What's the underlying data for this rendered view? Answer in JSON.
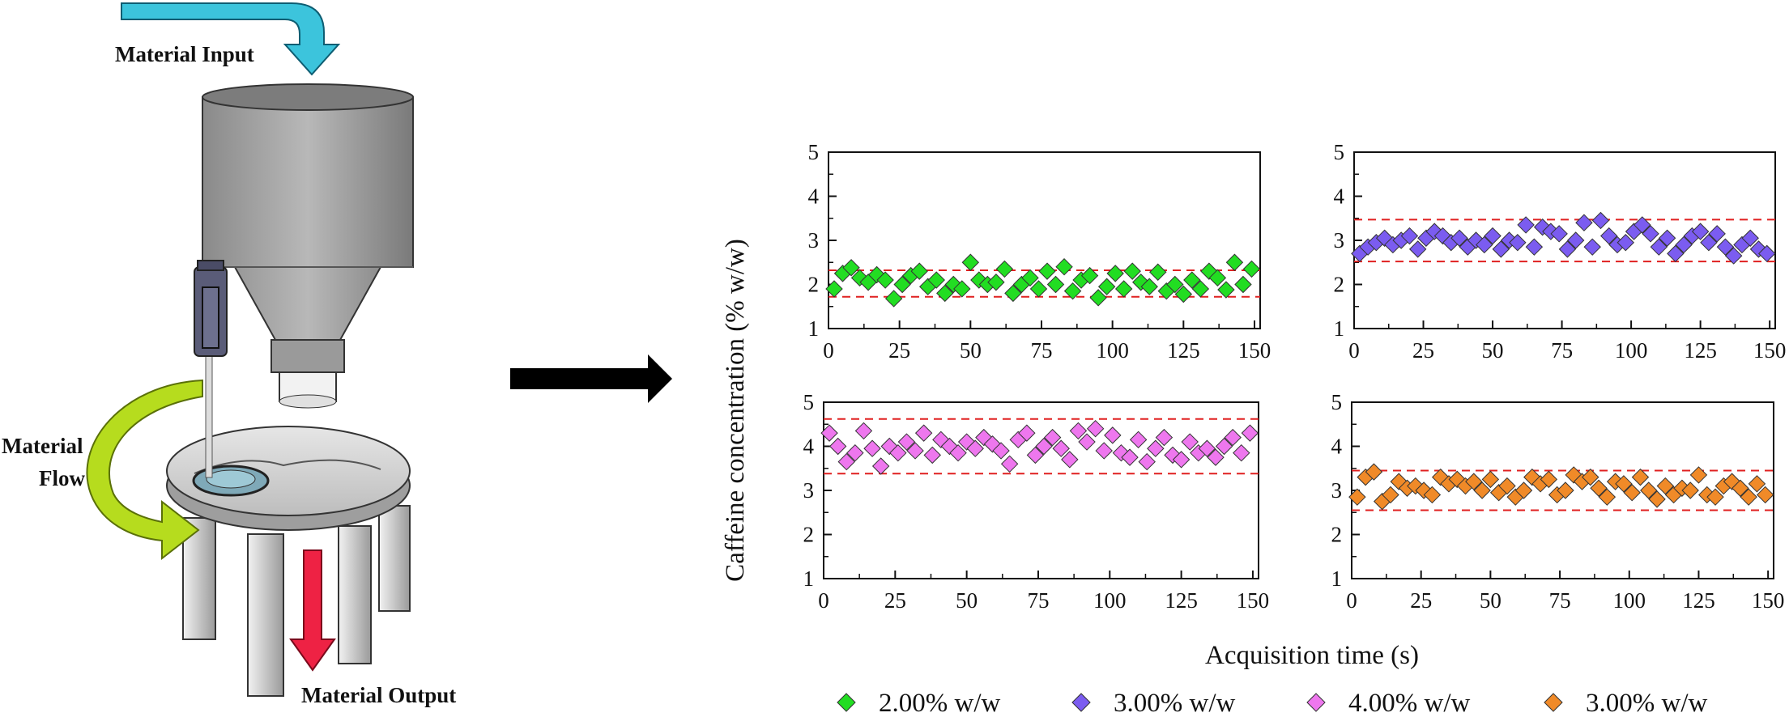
{
  "diagram": {
    "material_input_label": "Material Input",
    "material_flow_label_line1": "Material",
    "material_flow_label_line2": "Flow",
    "material_output_label": "Material Output"
  },
  "shared_axes": {
    "ylabel": "Caffeine concentration (% w/w)",
    "xlabel": "Acquisition time (s)"
  },
  "legend": [
    {
      "label": "2.00% w/w",
      "color": "#22dd22"
    },
    {
      "label": "3.00% w/w",
      "color": "#7b5cf0"
    },
    {
      "label": "4.00% w/w",
      "color": "#ee77ee"
    },
    {
      "label": "3.00% w/w",
      "color": "#f08a28"
    }
  ],
  "chart_data": [
    {
      "type": "scatter",
      "name": "2.00% w/w",
      "color": "#22dd22",
      "xlim": [
        0,
        152
      ],
      "ylim": [
        1,
        5
      ],
      "xticks": [
        0,
        25,
        50,
        75,
        100,
        125,
        150
      ],
      "yticks": [
        1,
        2,
        3,
        4,
        5
      ],
      "limits": [
        1.72,
        2.32
      ],
      "x": [
        2,
        5,
        8,
        11,
        14,
        17,
        20,
        23,
        26,
        29,
        32,
        35,
        38,
        41,
        44,
        47,
        50,
        53,
        56,
        59,
        62,
        65,
        68,
        71,
        74,
        77,
        80,
        83,
        86,
        89,
        92,
        95,
        98,
        101,
        104,
        107,
        110,
        113,
        116,
        119,
        122,
        125,
        128,
        131,
        134,
        137,
        140,
        143,
        146,
        149
      ],
      "y": [
        1.9,
        2.25,
        2.38,
        2.15,
        2.05,
        2.22,
        2.1,
        1.68,
        2.0,
        2.2,
        2.3,
        1.95,
        2.1,
        1.8,
        2.0,
        1.9,
        2.5,
        2.1,
        2.0,
        2.05,
        2.35,
        1.8,
        2.0,
        2.15,
        1.9,
        2.3,
        2.0,
        2.4,
        1.85,
        2.1,
        2.2,
        1.7,
        1.95,
        2.25,
        1.9,
        2.3,
        2.05,
        1.95,
        2.28,
        1.85,
        2.0,
        1.78,
        2.1,
        1.9,
        2.3,
        2.15,
        1.88,
        2.5,
        2.0,
        2.35
      ]
    },
    {
      "type": "scatter",
      "name": "3.00% w/w",
      "color": "#7b5cf0",
      "xlim": [
        0,
        152
      ],
      "ylim": [
        1,
        5
      ],
      "xticks": [
        0,
        25,
        50,
        75,
        100,
        125,
        150
      ],
      "yticks": [
        1,
        2,
        3,
        4,
        5
      ],
      "limits": [
        2.52,
        3.47
      ],
      "x": [
        2,
        5,
        8,
        11,
        14,
        17,
        20,
        23,
        26,
        29,
        32,
        35,
        38,
        41,
        44,
        47,
        50,
        53,
        56,
        59,
        62,
        65,
        68,
        71,
        74,
        77,
        80,
        83,
        86,
        89,
        92,
        95,
        98,
        101,
        104,
        107,
        110,
        113,
        116,
        119,
        122,
        125,
        128,
        131,
        134,
        137,
        140,
        143,
        146,
        149
      ],
      "y": [
        2.7,
        2.85,
        2.95,
        3.05,
        2.9,
        3.0,
        3.1,
        2.8,
        3.05,
        3.2,
        3.1,
        2.95,
        3.05,
        2.85,
        3.0,
        2.9,
        3.1,
        2.8,
        3.0,
        2.95,
        3.35,
        2.85,
        3.3,
        3.2,
        3.15,
        2.8,
        3.0,
        3.4,
        2.85,
        3.45,
        3.1,
        2.9,
        2.95,
        3.2,
        3.35,
        3.15,
        2.85,
        3.05,
        2.7,
        2.9,
        3.1,
        3.2,
        2.95,
        3.15,
        2.85,
        2.65,
        2.9,
        3.05,
        2.8,
        2.7
      ]
    },
    {
      "type": "scatter",
      "name": "4.00% w/w",
      "color": "#ee77ee",
      "xlim": [
        0,
        152
      ],
      "ylim": [
        1,
        5
      ],
      "xticks": [
        0,
        25,
        50,
        75,
        100,
        125,
        150
      ],
      "yticks": [
        1,
        2,
        3,
        4,
        5
      ],
      "limits": [
        3.38,
        4.62
      ],
      "x": [
        2,
        5,
        8,
        11,
        14,
        17,
        20,
        23,
        26,
        29,
        32,
        35,
        38,
        41,
        44,
        47,
        50,
        53,
        56,
        59,
        62,
        65,
        68,
        71,
        74,
        77,
        80,
        83,
        86,
        89,
        92,
        95,
        98,
        101,
        104,
        107,
        110,
        113,
        116,
        119,
        122,
        125,
        128,
        131,
        134,
        137,
        140,
        143,
        146,
        149
      ],
      "y": [
        4.3,
        4.0,
        3.65,
        3.85,
        4.35,
        3.95,
        3.55,
        4.0,
        3.85,
        4.1,
        3.9,
        4.3,
        3.8,
        4.15,
        4.0,
        3.85,
        4.1,
        3.95,
        4.2,
        4.05,
        3.9,
        3.6,
        4.15,
        4.3,
        3.8,
        4.0,
        4.2,
        3.95,
        3.7,
        4.35,
        4.1,
        4.4,
        3.9,
        4.25,
        3.85,
        3.75,
        4.15,
        3.65,
        3.95,
        4.2,
        3.8,
        3.7,
        4.1,
        3.85,
        3.95,
        3.75,
        4.0,
        4.2,
        3.85,
        4.3
      ]
    },
    {
      "type": "scatter",
      "name": "3.00% w/w",
      "color": "#f08a28",
      "xlim": [
        0,
        152
      ],
      "ylim": [
        1,
        5
      ],
      "xticks": [
        0,
        25,
        50,
        75,
        100,
        125,
        150
      ],
      "yticks": [
        1,
        2,
        3,
        4,
        5
      ],
      "limits": [
        2.55,
        3.45
      ],
      "x": [
        2,
        5,
        8,
        11,
        14,
        17,
        20,
        23,
        26,
        29,
        32,
        35,
        38,
        41,
        44,
        47,
        50,
        53,
        56,
        59,
        62,
        65,
        68,
        71,
        74,
        77,
        80,
        83,
        86,
        89,
        92,
        95,
        98,
        101,
        104,
        107,
        110,
        113,
        116,
        119,
        122,
        125,
        128,
        131,
        134,
        137,
        140,
        143,
        146,
        149
      ],
      "y": [
        2.85,
        3.3,
        3.42,
        2.75,
        2.9,
        3.2,
        3.05,
        3.1,
        3.0,
        2.9,
        3.3,
        3.15,
        3.25,
        3.1,
        3.2,
        3.0,
        3.25,
        2.95,
        3.1,
        2.85,
        3.0,
        3.3,
        3.15,
        3.25,
        2.9,
        3.0,
        3.35,
        3.2,
        3.3,
        3.05,
        2.85,
        3.2,
        3.15,
        2.95,
        3.3,
        3.0,
        2.8,
        3.1,
        2.9,
        3.05,
        3.0,
        3.35,
        2.9,
        2.85,
        3.1,
        3.2,
        3.05,
        2.85,
        3.15,
        2.9
      ]
    }
  ]
}
